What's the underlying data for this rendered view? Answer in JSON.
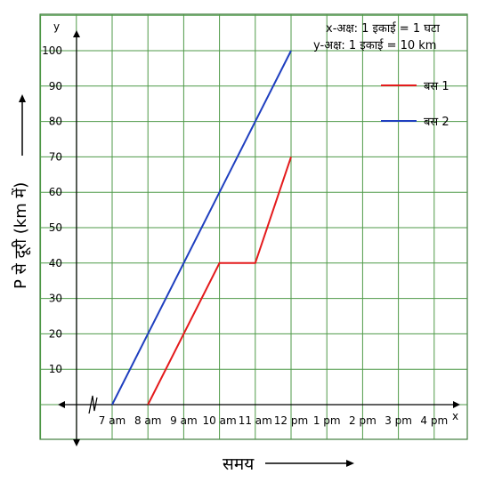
{
  "chart_data": {
    "type": "line",
    "title": "",
    "scale_note": [
      "x-अक्ष: 1 इकाई = 1 घटा",
      "y-अक्ष: 1 इकाई = 10 km"
    ],
    "xlabel": "समय",
    "ylabel": "P से दूरी (km में)",
    "x_axis_letter": "x",
    "y_axis_letter": "y",
    "x_ticks": [
      "7 am",
      "8 am",
      "9 am",
      "10 am",
      "11 am",
      "12 pm",
      "1 pm",
      "2 pm",
      "3 pm",
      "4 pm"
    ],
    "y_ticks": [
      10,
      20,
      30,
      40,
      50,
      60,
      70,
      80,
      90,
      100
    ],
    "ylim": [
      0,
      100
    ],
    "grid": true,
    "legend_position": "top-right",
    "series": [
      {
        "name": "बस 1",
        "color": "#e41a1c",
        "x": [
          "8 am",
          "10 am",
          "11 am",
          "12 pm"
        ],
        "y": [
          0,
          40,
          40,
          70
        ]
      },
      {
        "name": "बस 2",
        "color": "#1f3fbf",
        "x": [
          "7 am",
          "12 pm"
        ],
        "y": [
          0,
          100
        ]
      }
    ]
  }
}
